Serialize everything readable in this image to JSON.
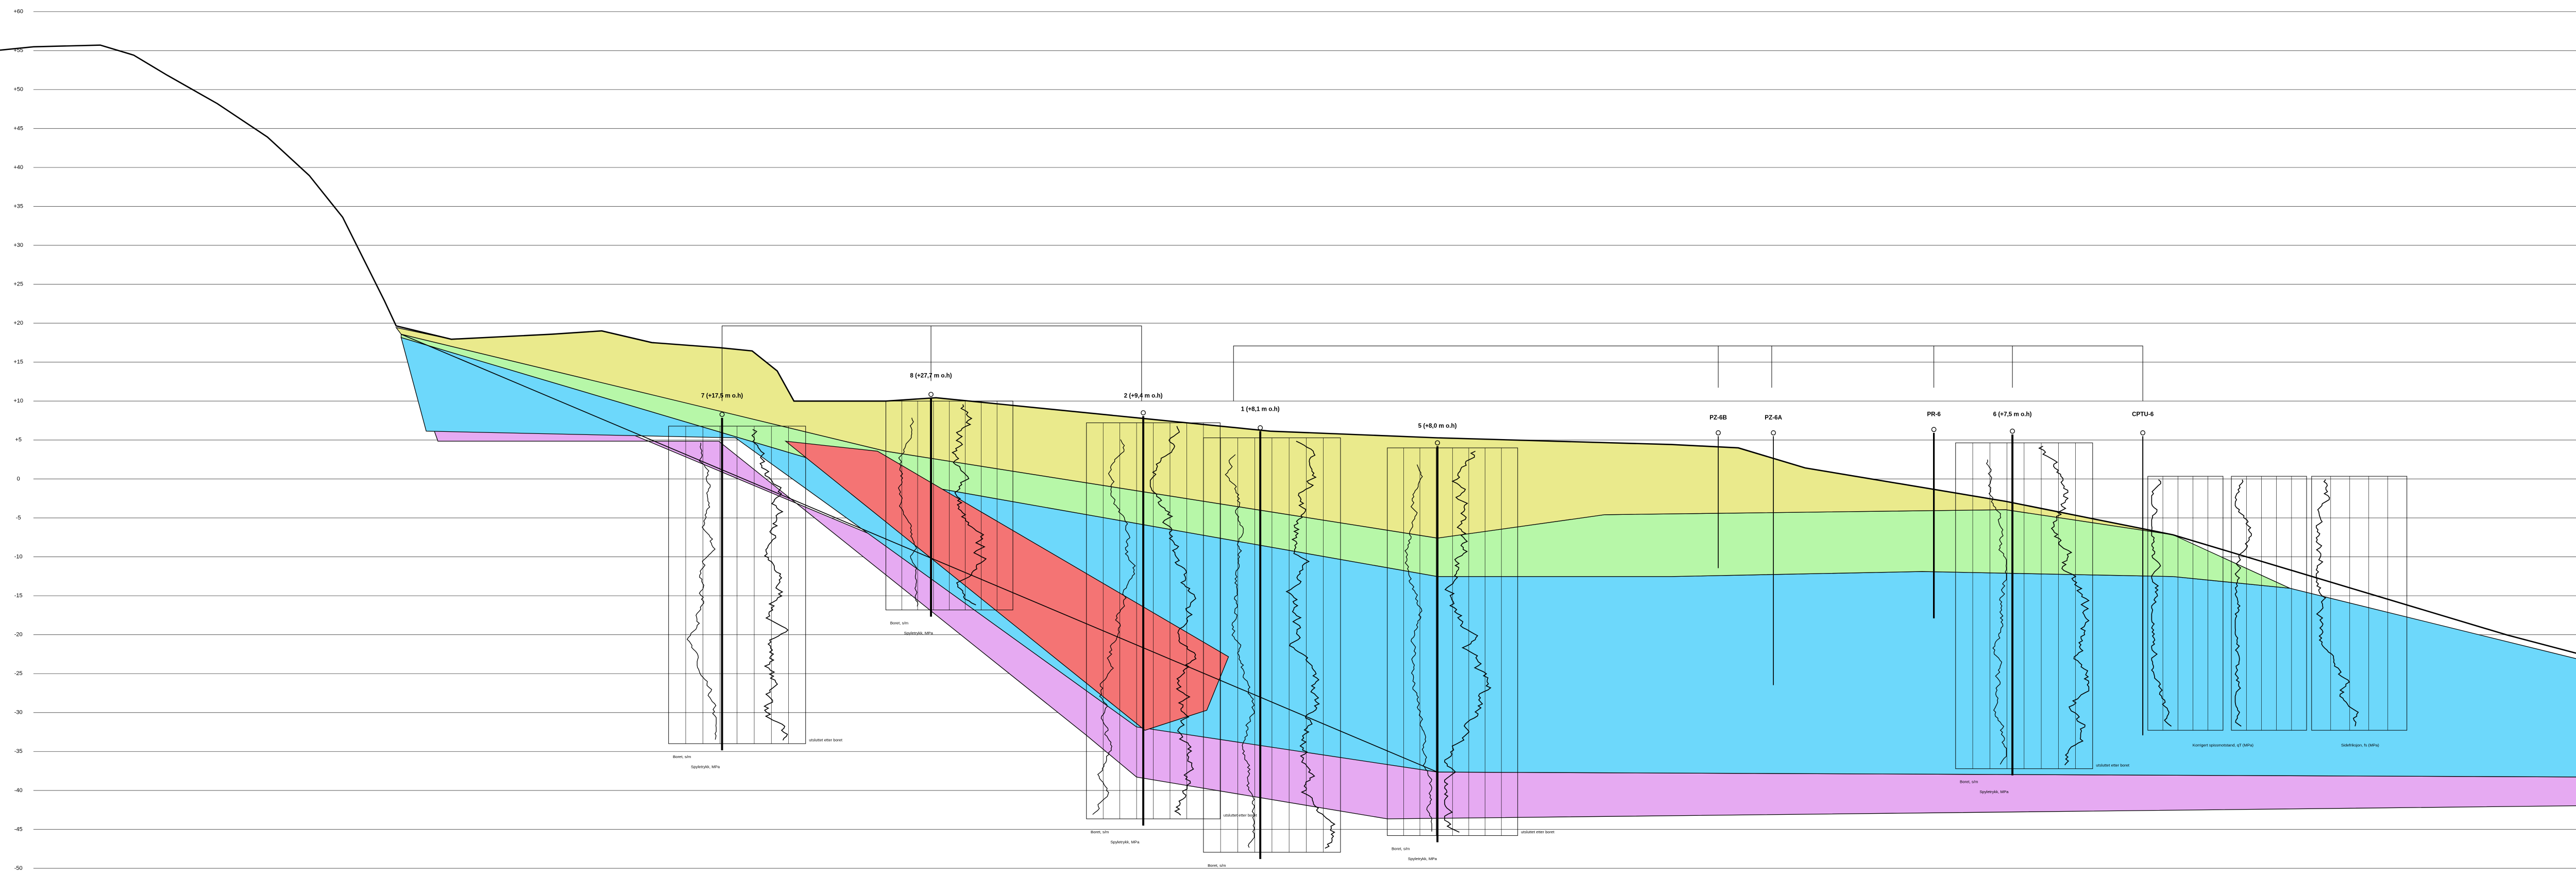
{
  "axis": {
    "ticks": [
      {
        "value": 60,
        "label": "+60"
      },
      {
        "value": 55,
        "label": "+55"
      },
      {
        "value": 50,
        "label": "+50"
      },
      {
        "value": 45,
        "label": "+45"
      },
      {
        "value": 40,
        "label": "+40"
      },
      {
        "value": 35,
        "label": "+35"
      },
      {
        "value": 30,
        "label": "+30"
      },
      {
        "value": 25,
        "label": "+25"
      },
      {
        "value": 20,
        "label": "+20"
      },
      {
        "value": 15,
        "label": "+15"
      },
      {
        "value": 10,
        "label": "+10"
      },
      {
        "value": 5,
        "label": "+5"
      },
      0,
      -5,
      -10,
      -15,
      -20,
      -25,
      -30,
      -35,
      -40,
      -45,
      -50
    ]
  },
  "boreholes": [
    "7 (+17,5 m o.h)",
    "8 (+27,7 m o.h)",
    "2 (+9,4 m o.h)",
    "1 (+8,1 m o.h)",
    "5 (+8,0 m o.h)",
    "PZ-6B",
    "PZ-6A",
    "PR-6",
    "6 (+7,5 m o.h)",
    "CPTU-6"
  ],
  "annotations": [
    "utsluttet etter boret",
    "Spyletrykk, MPa",
    "Boret, s/m",
    "Korrigert spissmotstand, qT (MPa)",
    "Sidefriksjon, fs (MPa)"
  ]
}
